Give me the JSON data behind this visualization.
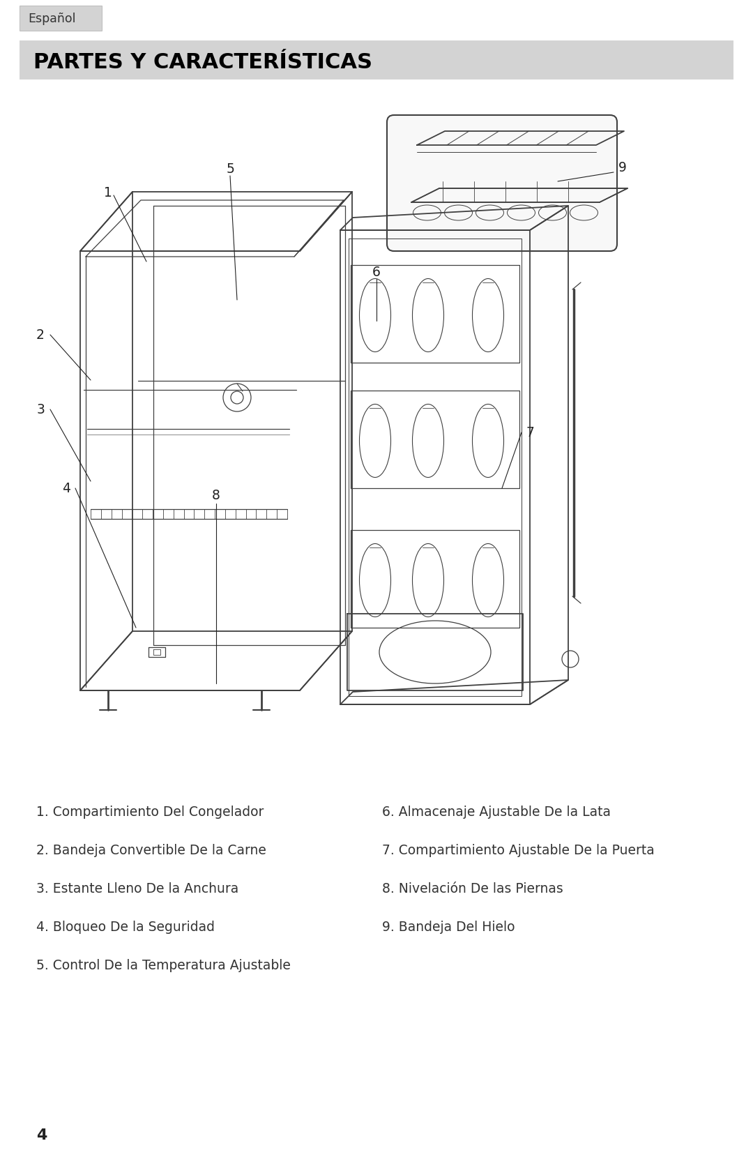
{
  "tab_label": "Español",
  "tab_bg": "#d3d3d3",
  "tab_text_color": "#333333",
  "title": "PARTES Y CARACTERÍSTICAS",
  "title_bg": "#d3d3d3",
  "title_color": "#000000",
  "title_fontsize": 22,
  "page_bg": "#ffffff",
  "body_text_color": "#333333",
  "page_number": "4",
  "items_left": [
    "1. Compartimiento Del Congelador",
    "2. Bandeja Convertible De la Carne",
    "3. Estante Lleno De la Anchura",
    "4. Bloqueo De la Seguridad",
    "5. Control De la Temperatura Ajustable"
  ],
  "items_right": [
    "6. Almacenaje Ajustable De la Lata",
    "7. Compartimiento Ajustable De la Puerta",
    "8. Nivelación De las Piernas",
    "9. Bandeja Del Hielo"
  ],
  "outline_color": "#404040",
  "line_width": 1.3
}
